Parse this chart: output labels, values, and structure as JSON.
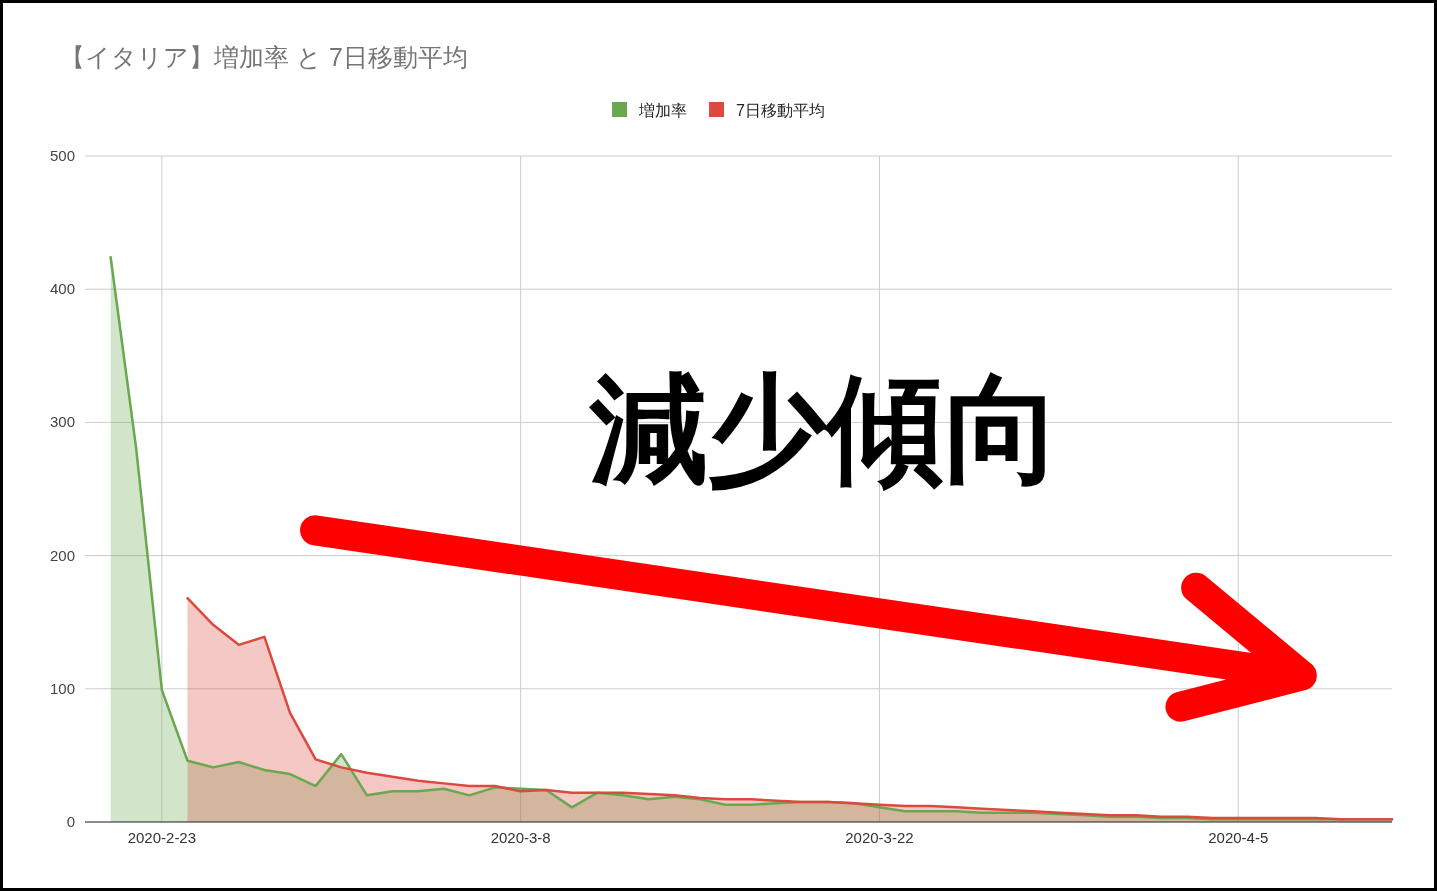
{
  "chart_data": {
    "type": "area",
    "title": "【イタリア】増加率 と 7日移動平均",
    "x": [
      "2020-02-21",
      "2020-02-22",
      "2020-02-23",
      "2020-02-24",
      "2020-02-25",
      "2020-02-26",
      "2020-02-27",
      "2020-02-28",
      "2020-02-29",
      "2020-03-01",
      "2020-03-02",
      "2020-03-03",
      "2020-03-04",
      "2020-03-05",
      "2020-03-06",
      "2020-03-07",
      "2020-03-08",
      "2020-03-09",
      "2020-03-10",
      "2020-03-11",
      "2020-03-12",
      "2020-03-13",
      "2020-03-14",
      "2020-03-15",
      "2020-03-16",
      "2020-03-17",
      "2020-03-18",
      "2020-03-19",
      "2020-03-20",
      "2020-03-21",
      "2020-03-22",
      "2020-03-23",
      "2020-03-24",
      "2020-03-25",
      "2020-03-26",
      "2020-03-27",
      "2020-03-28",
      "2020-03-29",
      "2020-03-30",
      "2020-03-31",
      "2020-04-01",
      "2020-04-02",
      "2020-04-03",
      "2020-04-04",
      "2020-04-05",
      "2020-04-06",
      "2020-04-07",
      "2020-04-08",
      "2020-04-09",
      "2020-04-10",
      "2020-04-11"
    ],
    "series": [
      {
        "name": "増加率",
        "color": "#6aa84f",
        "values": [
          424,
          280,
          99,
          46,
          41,
          45,
          39,
          36,
          27,
          51,
          20,
          23,
          23,
          25,
          20,
          26,
          25,
          24,
          11,
          22,
          20,
          17,
          19,
          17,
          13,
          13,
          14,
          15,
          15,
          14,
          11,
          8,
          8,
          8,
          7,
          7,
          7,
          6,
          5,
          4,
          4,
          3,
          3,
          2,
          2,
          2,
          2,
          2,
          2,
          2,
          2
        ]
      },
      {
        "name": "7日移動平均",
        "color": "#dc4a3d",
        "values": [
          null,
          null,
          null,
          168,
          148,
          133,
          139,
          82,
          47,
          41,
          37,
          34,
          31,
          29,
          27,
          27,
          23,
          24,
          22,
          22,
          22,
          21,
          20,
          18,
          17,
          17,
          16,
          15,
          15,
          14,
          13,
          12,
          12,
          11,
          10,
          9,
          8,
          7,
          6,
          5,
          5,
          4,
          4,
          3,
          3,
          3,
          3,
          3,
          2,
          2,
          2
        ]
      }
    ],
    "xlim": [
      "2020-02-20",
      "2020-04-11"
    ],
    "xticks": [
      {
        "value": "2020-02-23",
        "label": "2020-2-23"
      },
      {
        "value": "2020-03-08",
        "label": "2020-3-8"
      },
      {
        "value": "2020-03-22",
        "label": "2020-3-22"
      },
      {
        "value": "2020-04-05",
        "label": "2020-4-5"
      }
    ],
    "ylim": [
      0,
      500
    ],
    "yticks": [
      0,
      100,
      200,
      300,
      400,
      500
    ],
    "grid": true,
    "legend": "top",
    "annotations": [
      "減少傾向"
    ]
  }
}
